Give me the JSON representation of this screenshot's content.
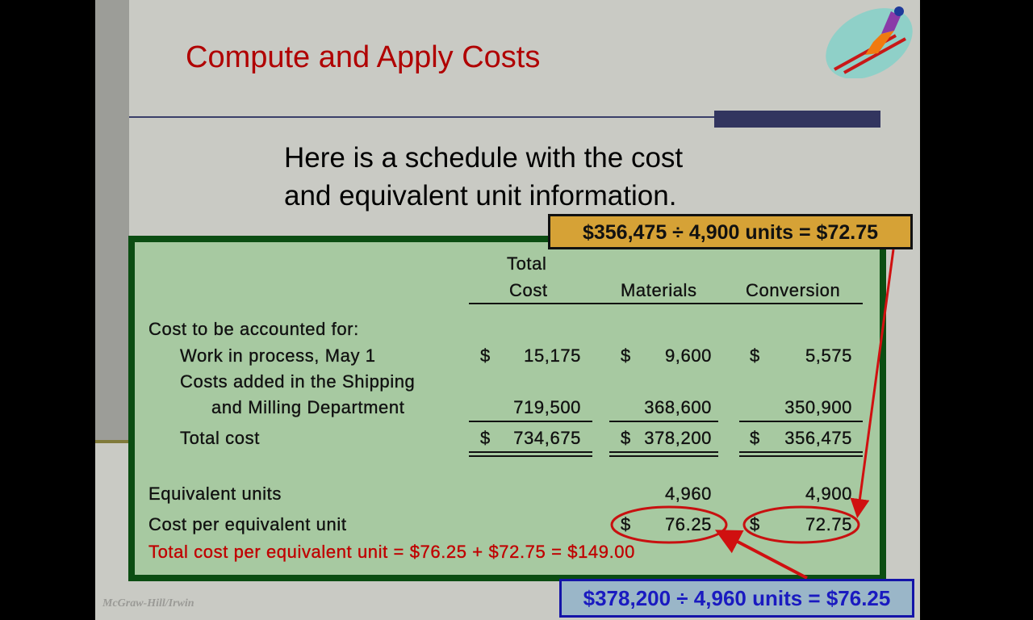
{
  "slide": {
    "title": "Compute and Apply Costs",
    "subtitle_line1": "Here is a schedule with the cost",
    "subtitle_line2": "and equivalent unit information.",
    "footer": "McGraw-Hill/Irwin",
    "logo_icon": "ski-jumper-icon"
  },
  "table": {
    "headers": {
      "total_line1": "Total",
      "total_line2": "Cost",
      "materials": "Materials",
      "conversion": "Conversion"
    },
    "section_label": "Cost to be accounted for:",
    "rows": [
      {
        "label": "Work in process, May 1",
        "total_sign": "$",
        "total": "15,175",
        "materials_sign": "$",
        "materials": "9,600",
        "conversion_sign": "$",
        "conversion": "5,575"
      },
      {
        "label_line1": "Costs added in the Shipping",
        "label_line2": "and Milling Department",
        "total": "719,500",
        "materials": "368,600",
        "conversion": "350,900"
      },
      {
        "label": "Total cost",
        "total_sign": "$",
        "total": "734,675",
        "materials_sign": "$",
        "materials": "378,200",
        "conversion_sign": "$",
        "conversion": "356,475"
      }
    ],
    "equivalent_units": {
      "label": "Equivalent units",
      "materials": "4,960",
      "conversion": "4,900"
    },
    "cost_per_unit": {
      "label": "Cost per equivalent unit",
      "materials_sign": "$",
      "materials": "76.25",
      "conversion_sign": "$",
      "conversion": "72.75"
    },
    "total_per_unit": "Total cost per equivalent unit = $76.25 + $72.75  = $149.00"
  },
  "callouts": {
    "conversion": "$356,475 ÷ 4,900 units = $72.75",
    "materials": "$378,200 ÷ 4,960 units = $76.25"
  },
  "colors": {
    "title": "#b00000",
    "box_fill": "#a7c9a1",
    "box_border": "#0b4d12",
    "gold_callout": "#d6a236",
    "blue_callout": "#1414a8",
    "highlight": "#c00000"
  }
}
